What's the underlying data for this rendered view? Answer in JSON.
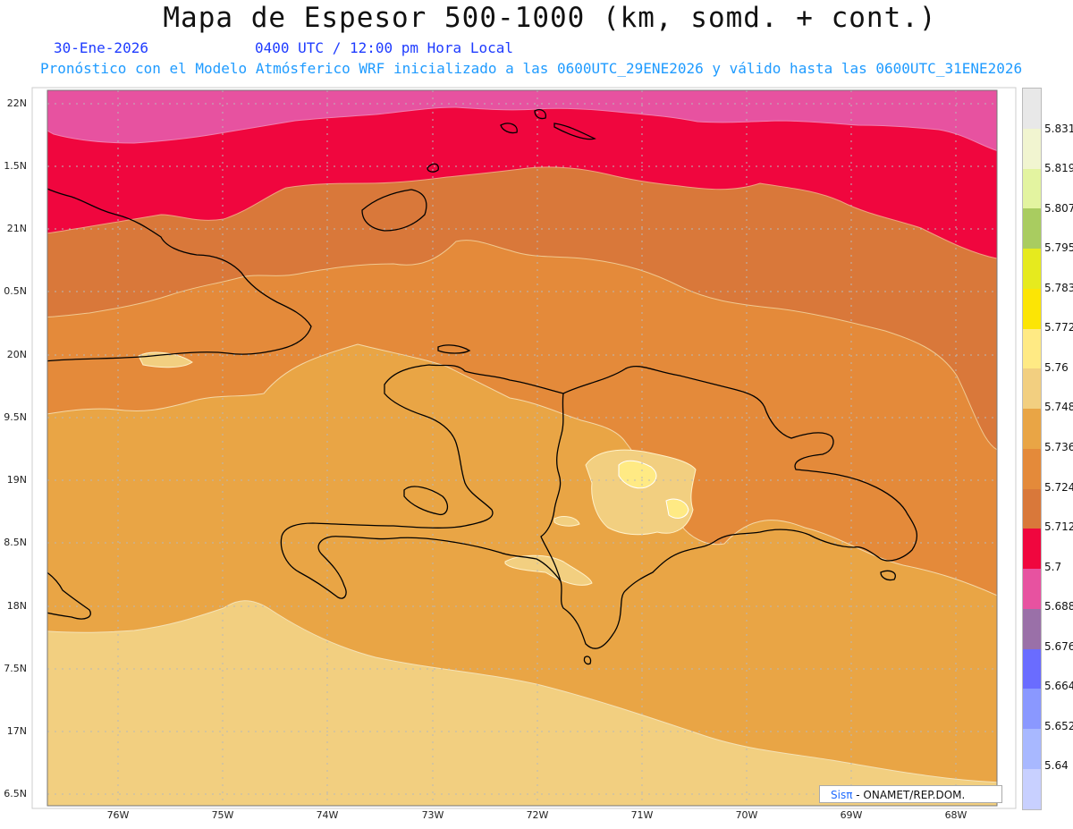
{
  "header": {
    "title": "Mapa de Espesor 500-1000 (km, somd. + cont.)",
    "date": "30-Ene-2026",
    "time": "0400 UTC / 12:00 pm Hora Local",
    "subtitle": "Pronóstico con el Modelo Atmósferico WRF inicializado a las 0600UTC_29ENE2026 y válido hasta las  0600UTC_31ENE2026"
  },
  "axes": {
    "lat_ticks": [
      "22N",
      "1.5N",
      "21N",
      "0.5N",
      "20N",
      "9.5N",
      "19N",
      "8.5N",
      "18N",
      "7.5N",
      "17N",
      "6.5N"
    ],
    "lon_ticks": [
      "76W",
      "75W",
      "74W",
      "73W",
      "72W",
      "71W",
      "70W",
      "69W",
      "68W"
    ]
  },
  "colorbar": {
    "labels": [
      "5.831",
      "5.819",
      "5.807",
      "5.795",
      "5.783",
      "5.772",
      "5.76",
      "5.748",
      "5.736",
      "5.724",
      "5.712",
      "5.7",
      "5.688",
      "5.676",
      "5.664",
      "5.652",
      "5.64"
    ],
    "colors": [
      "#e8e8e8",
      "#f1f5d0",
      "#e3f4a0",
      "#a9cc60",
      "#e6ea1e",
      "#fce505",
      "#ffea84",
      "#f2cf80",
      "#e9a545",
      "#e48a3a",
      "#d9783a",
      "#f0063e",
      "#e752a0",
      "#9a70a8",
      "#6a6cff",
      "#8a98ff",
      "#a8b8ff",
      "#c8d0ff"
    ]
  },
  "fill_colors": {
    "band_5_688": "#e752a0",
    "band_5_7": "#f0063e",
    "band_5_712": "#d9783a",
    "band_5_724": "#e48a3a",
    "band_5_736": "#e9a545",
    "band_5_748": "#f2cf80",
    "band_5_76": "#ffea84",
    "coastline": "#000000"
  },
  "credit": {
    "brand": "Sisπ",
    "text": "- ONAMET/REP.DOM."
  }
}
